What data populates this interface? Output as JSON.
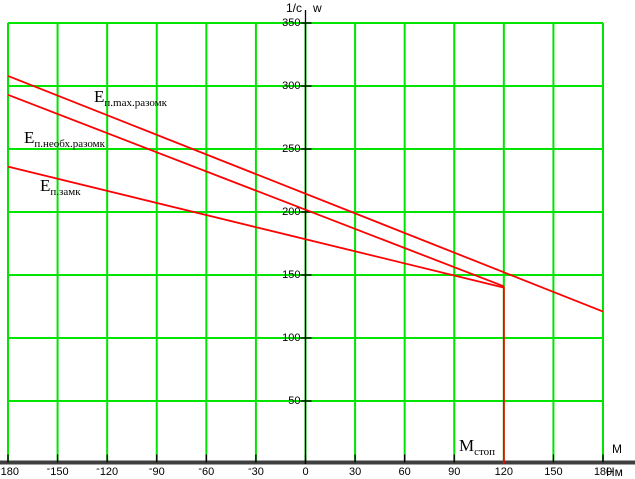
{
  "chart_data": {
    "type": "line",
    "title": "",
    "grid": true,
    "legend_position": "inline-labels",
    "x_axis": {
      "axis_label": "М",
      "unit_label": "Нм",
      "range": [
        -180,
        180
      ],
      "grid_step": 30,
      "ticks": [
        -180,
        -150,
        -120,
        -90,
        -60,
        -30,
        0,
        30,
        60,
        90,
        120,
        150,
        180
      ]
    },
    "y_axis": {
      "label_left": "1/c",
      "label_right": "w",
      "range": [
        0,
        350
      ],
      "grid_step": 50,
      "ticks": [
        50,
        100,
        150,
        200,
        250,
        300,
        350
      ]
    },
    "colors": {
      "grid": "#00e400",
      "trace": "#ff0000",
      "axis_bar": "#3f3f3f",
      "axis_line": "#000000",
      "text": "#000000"
    },
    "series": [
      {
        "name": "E-p-max-razomk",
        "label_main": "Е",
        "label_sub": "п.max.разомк",
        "points": [
          [
            -180,
            308
          ],
          [
            180,
            121
          ]
        ]
      },
      {
        "name": "E-p-neobh-razomk",
        "label_main": "Е",
        "label_sub": "п.необх.разомк",
        "points": [
          [
            -180,
            293
          ],
          [
            120,
            141
          ]
        ]
      },
      {
        "name": "E-p-zamk",
        "label_main": "Е",
        "label_sub": "п.замк",
        "points": [
          [
            -180,
            236
          ],
          [
            120,
            140
          ]
        ]
      },
      {
        "name": "M-stop",
        "label_main": "М",
        "label_sub": "стоп",
        "points": [
          [
            120,
            141
          ],
          [
            120,
            0
          ]
        ]
      }
    ]
  }
}
